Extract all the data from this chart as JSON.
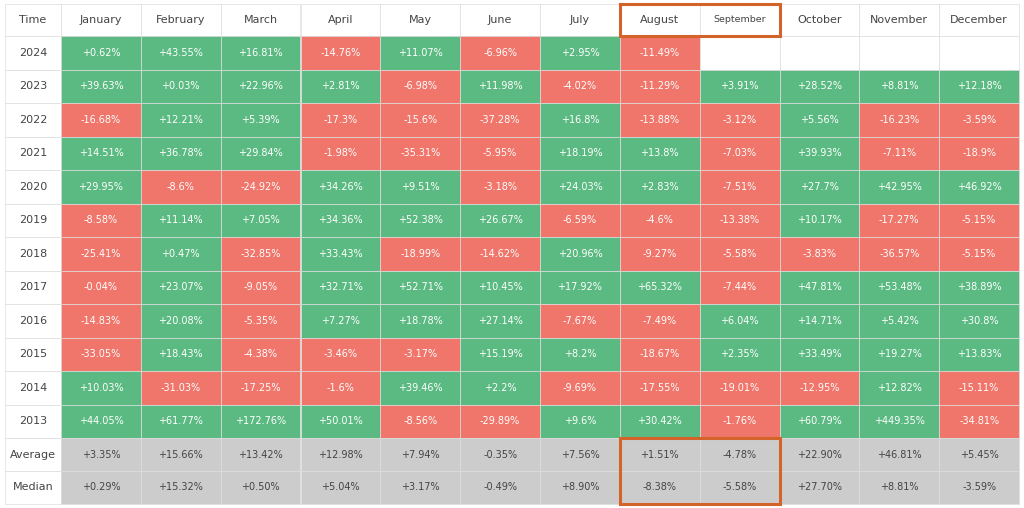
{
  "columns": [
    "Time",
    "January",
    "February",
    "March",
    "April",
    "May",
    "June",
    "July",
    "August",
    "September",
    "October",
    "November",
    "December"
  ],
  "rows": [
    {
      "year": "2024",
      "values": [
        "+0.62%",
        "+43.55%",
        "+16.81%",
        "-14.76%",
        "+11.07%",
        "-6.96%",
        "+2.95%",
        "-11.49%",
        "",
        "",
        "",
        ""
      ]
    },
    {
      "year": "2023",
      "values": [
        "+39.63%",
        "+0.03%",
        "+22.96%",
        "+2.81%",
        "-6.98%",
        "+11.98%",
        "-4.02%",
        "-11.29%",
        "+3.91%",
        "+28.52%",
        "+8.81%",
        "+12.18%"
      ]
    },
    {
      "year": "2022",
      "values": [
        "-16.68%",
        "+12.21%",
        "+5.39%",
        "-17.3%",
        "-15.6%",
        "-37.28%",
        "+16.8%",
        "-13.88%",
        "-3.12%",
        "+5.56%",
        "-16.23%",
        "-3.59%"
      ]
    },
    {
      "year": "2021",
      "values": [
        "+14.51%",
        "+36.78%",
        "+29.84%",
        "-1.98%",
        "-35.31%",
        "-5.95%",
        "+18.19%",
        "+13.8%",
        "-7.03%",
        "+39.93%",
        "-7.11%",
        "-18.9%"
      ]
    },
    {
      "year": "2020",
      "values": [
        "+29.95%",
        "-8.6%",
        "-24.92%",
        "+34.26%",
        "+9.51%",
        "-3.18%",
        "+24.03%",
        "+2.83%",
        "-7.51%",
        "+27.7%",
        "+42.95%",
        "+46.92%"
      ]
    },
    {
      "year": "2019",
      "values": [
        "-8.58%",
        "+11.14%",
        "+7.05%",
        "+34.36%",
        "+52.38%",
        "+26.67%",
        "-6.59%",
        "-4.6%",
        "-13.38%",
        "+10.17%",
        "-17.27%",
        "-5.15%"
      ]
    },
    {
      "year": "2018",
      "values": [
        "-25.41%",
        "+0.47%",
        "-32.85%",
        "+33.43%",
        "-18.99%",
        "-14.62%",
        "+20.96%",
        "-9.27%",
        "-5.58%",
        "-3.83%",
        "-36.57%",
        "-5.15%"
      ]
    },
    {
      "year": "2017",
      "values": [
        "-0.04%",
        "+23.07%",
        "-9.05%",
        "+32.71%",
        "+52.71%",
        "+10.45%",
        "+17.92%",
        "+65.32%",
        "-7.44%",
        "+47.81%",
        "+53.48%",
        "+38.89%"
      ]
    },
    {
      "year": "2016",
      "values": [
        "-14.83%",
        "+20.08%",
        "-5.35%",
        "+7.27%",
        "+18.78%",
        "+27.14%",
        "-7.67%",
        "-7.49%",
        "+6.04%",
        "+14.71%",
        "+5.42%",
        "+30.8%"
      ]
    },
    {
      "year": "2015",
      "values": [
        "-33.05%",
        "+18.43%",
        "-4.38%",
        "-3.46%",
        "-3.17%",
        "+15.19%",
        "+8.2%",
        "-18.67%",
        "+2.35%",
        "+33.49%",
        "+19.27%",
        "+13.83%"
      ]
    },
    {
      "year": "2014",
      "values": [
        "+10.03%",
        "-31.03%",
        "-17.25%",
        "-1.6%",
        "+39.46%",
        "+2.2%",
        "-9.69%",
        "-17.55%",
        "-19.01%",
        "-12.95%",
        "+12.82%",
        "-15.11%"
      ]
    },
    {
      "year": "2013",
      "values": [
        "+44.05%",
        "+61.77%",
        "+172.76%",
        "+50.01%",
        "-8.56%",
        "-29.89%",
        "+9.6%",
        "+30.42%",
        "-1.76%",
        "+60.79%",
        "+449.35%",
        "-34.81%"
      ]
    }
  ],
  "average": [
    "+3.35%",
    "+15.66%",
    "+13.42%",
    "+12.98%",
    "+7.94%",
    "-0.35%",
    "+7.56%",
    "+1.51%",
    "-4.78%",
    "+22.90%",
    "+46.81%",
    "+5.45%"
  ],
  "median": [
    "+0.29%",
    "+15.32%",
    "+0.50%",
    "+5.04%",
    "+3.17%",
    "-0.49%",
    "+8.90%",
    "-8.38%",
    "-5.58%",
    "+27.70%",
    "+8.81%",
    "-3.59%"
  ],
  "green_color": "#5bba82",
  "red_color": "#f0756a",
  "header_bg": "#ffffff",
  "header_text": "#444444",
  "row_label_text": "#444444",
  "avg_med_bg": "#cccccc",
  "avg_med_text": "#444444",
  "empty_cell_bg": "#ffffff",
  "highlight_border_color": "#d4632a",
  "table_border_color": "#dddddd",
  "white_text": "#ffffff",
  "fig_bg": "#ffffff",
  "cell_fontsize": 7.0,
  "header_fontsize": 8.0,
  "label_fontsize": 8.0
}
